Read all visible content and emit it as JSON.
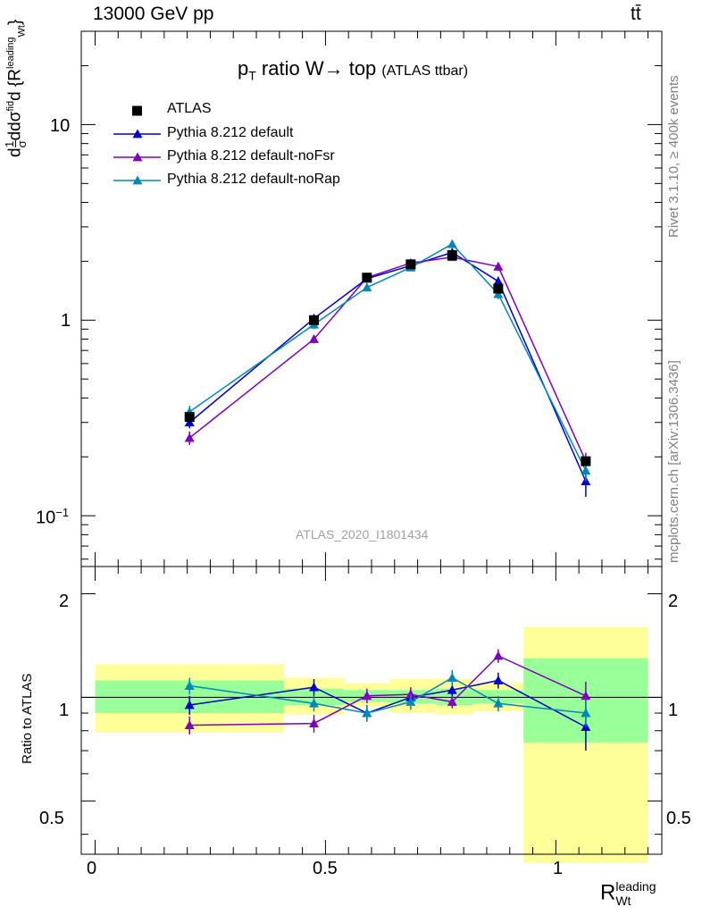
{
  "header": {
    "energy": "13000 GeV pp",
    "process": "tt̄"
  },
  "title": {
    "main": "p",
    "sub": "T",
    "rest": " ratio W→ top",
    "small": "(ATLAS ttbar)"
  },
  "watermark": "ATLAS_2020_I1801434",
  "side_labels": {
    "rivet": "Rivet 3.1.10, ≥ 400k events",
    "mcplots": "mcplots.cern.ch [arXiv:1306.3436]"
  },
  "yaxis_top": {
    "parts": [
      "d",
      "1",
      "σ",
      "d",
      "dσ",
      "fid",
      "d {R",
      "leading",
      "Wt",
      "}"
    ]
  },
  "yaxis_bottom": {
    "label": "Ratio to ATLAS"
  },
  "xaxis": {
    "base": "R",
    "sup": "leading",
    "sub": "Wt"
  },
  "tick_labels": {
    "top_y": [
      "10",
      "1",
      "10",
      "−1"
    ],
    "bottom_y": [
      "2",
      "1",
      "0.5"
    ],
    "x": [
      "0",
      "0.5",
      "1"
    ]
  },
  "legend": [
    {
      "label": "ATLAS",
      "marker": "square",
      "color": "#000000"
    },
    {
      "label": "Pythia 8.212 default",
      "marker": "triangle",
      "color": "#0000cc"
    },
    {
      "label": "Pythia 8.212 default-noFsr",
      "marker": "triangle",
      "color": "#7f00bf"
    },
    {
      "label": "Pythia 8.212 default-noRap",
      "marker": "triangle",
      "color": "#0088b8"
    }
  ],
  "chart_data": {
    "type": "line",
    "x_range": [
      -0.03,
      1.23
    ],
    "top_ylim": [
      0.055,
      30
    ],
    "top_log": true,
    "ratio_ylim": [
      0.35,
      2.4
    ],
    "ratio_log": true,
    "bins": [
      {
        "lo": 0.0,
        "hi": 0.41,
        "x": 0.205
      },
      {
        "lo": 0.41,
        "hi": 0.54,
        "x": 0.475
      },
      {
        "lo": 0.54,
        "hi": 0.64,
        "x": 0.59
      },
      {
        "lo": 0.64,
        "hi": 0.74,
        "x": 0.685
      },
      {
        "lo": 0.74,
        "hi": 0.82,
        "x": 0.775
      },
      {
        "lo": 0.82,
        "hi": 0.93,
        "x": 0.875
      },
      {
        "lo": 0.93,
        "hi": 1.2,
        "x": 1.065
      }
    ],
    "data": {
      "name": "ATLAS",
      "values": [
        0.32,
        1.0,
        1.65,
        1.93,
        2.15,
        1.45,
        0.19
      ],
      "errors": [
        0.02,
        0.05,
        0.07,
        0.07,
        0.08,
        0.08,
        0.01
      ],
      "band_yellow": [
        [
          0.79,
          1.25
        ],
        [
          0.89,
          1.14
        ],
        [
          0.94,
          1.1
        ],
        [
          0.9,
          1.13
        ],
        [
          0.89,
          1.13
        ],
        [
          0.91,
          1.1
        ],
        [
          0.33,
          1.6
        ]
      ],
      "band_green": [
        [
          0.9,
          1.12
        ],
        [
          0.95,
          1.06
        ],
        [
          0.97,
          1.05
        ],
        [
          0.96,
          1.05
        ],
        [
          0.95,
          1.06
        ],
        [
          0.96,
          1.05
        ],
        [
          0.74,
          1.3
        ]
      ]
    },
    "series": [
      {
        "name": "Pythia 8.212 default",
        "color": "#0000cc",
        "values": [
          0.3,
          1.02,
          1.63,
          1.9,
          2.22,
          1.58,
          0.15
        ],
        "errors": [
          0.02,
          0.05,
          0.07,
          0.07,
          0.08,
          0.09,
          0.025
        ],
        "ratio": [
          0.95,
          1.07,
          0.9,
          1.0,
          1.05,
          1.12,
          0.82
        ],
        "ratio_err": [
          0.06,
          0.06,
          0.05,
          0.05,
          0.05,
          0.06,
          0.12
        ]
      },
      {
        "name": "Pythia 8.212 default-noFsr",
        "color": "#7f00bf",
        "values": [
          0.25,
          0.8,
          1.65,
          1.96,
          2.1,
          1.88,
          0.19
        ],
        "errors": [
          0.02,
          0.04,
          0.07,
          0.07,
          0.08,
          0.09,
          0.02
        ],
        "ratio": [
          0.83,
          0.84,
          1.01,
          1.02,
          0.97,
          1.32,
          1.01
        ],
        "ratio_err": [
          0.05,
          0.05,
          0.05,
          0.05,
          0.04,
          0.06,
          0.1
        ]
      },
      {
        "name": "Pythia 8.212 default-noRap",
        "color": "#0088b8",
        "values": [
          0.34,
          0.95,
          1.47,
          1.86,
          2.45,
          1.36,
          0.17
        ],
        "errors": [
          0.025,
          0.05,
          0.07,
          0.07,
          0.1,
          0.08,
          0.02
        ],
        "ratio": [
          1.08,
          0.96,
          0.9,
          0.97,
          1.14,
          0.96,
          0.9
        ],
        "ratio_err": [
          0.06,
          0.05,
          0.05,
          0.05,
          0.06,
          0.05,
          0.08
        ]
      }
    ]
  }
}
